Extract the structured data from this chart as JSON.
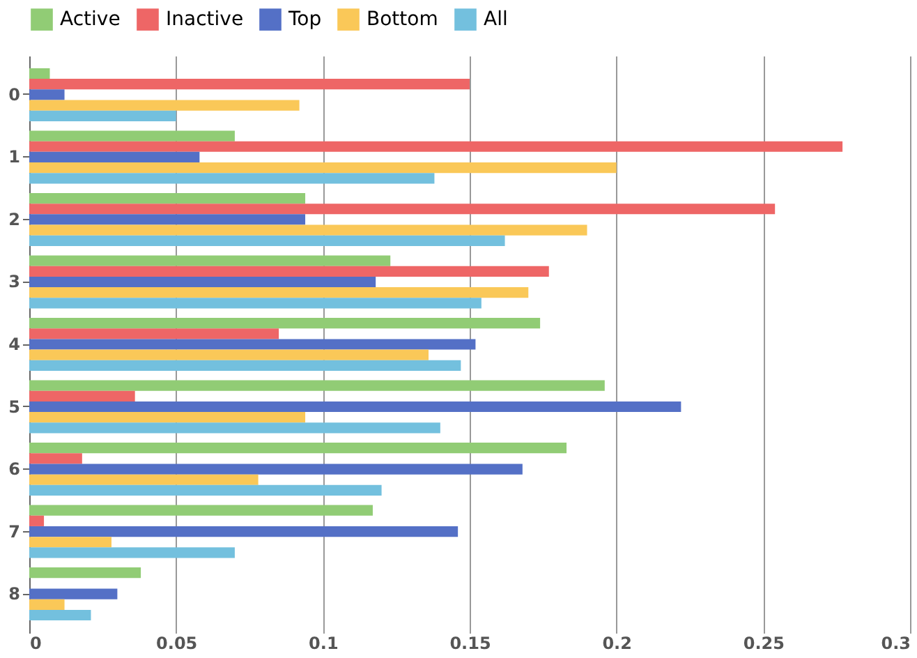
{
  "chart_data": {
    "type": "bar",
    "orientation": "horizontal",
    "categories": [
      "0",
      "1",
      "2",
      "3",
      "4",
      "5",
      "6",
      "7",
      "8"
    ],
    "series": [
      {
        "name": "Active",
        "color": "#91cc75",
        "values": [
          0.007,
          0.07,
          0.094,
          0.123,
          0.174,
          0.196,
          0.183,
          0.117,
          0.038
        ]
      },
      {
        "name": "Inactive",
        "color": "#ee6666",
        "values": [
          0.15,
          0.277,
          0.254,
          0.177,
          0.085,
          0.036,
          0.018,
          0.005,
          0
        ]
      },
      {
        "name": "Top",
        "color": "#5470c6",
        "values": [
          0.012,
          0.058,
          0.094,
          0.118,
          0.152,
          0.222,
          0.168,
          0.146,
          0.03
        ]
      },
      {
        "name": "Bottom",
        "color": "#fac858",
        "values": [
          0.092,
          0.2,
          0.19,
          0.17,
          0.136,
          0.094,
          0.078,
          0.028,
          0.012
        ]
      },
      {
        "name": "All",
        "color": "#73c0de",
        "values": [
          0.05,
          0.138,
          0.162,
          0.154,
          0.147,
          0.14,
          0.12,
          0.07,
          0.021
        ]
      }
    ],
    "xlim": [
      0,
      0.3
    ],
    "xticks": [
      0,
      0.05,
      0.1,
      0.15,
      0.2,
      0.25,
      0.3
    ],
    "grid": "x",
    "legend": "top"
  }
}
